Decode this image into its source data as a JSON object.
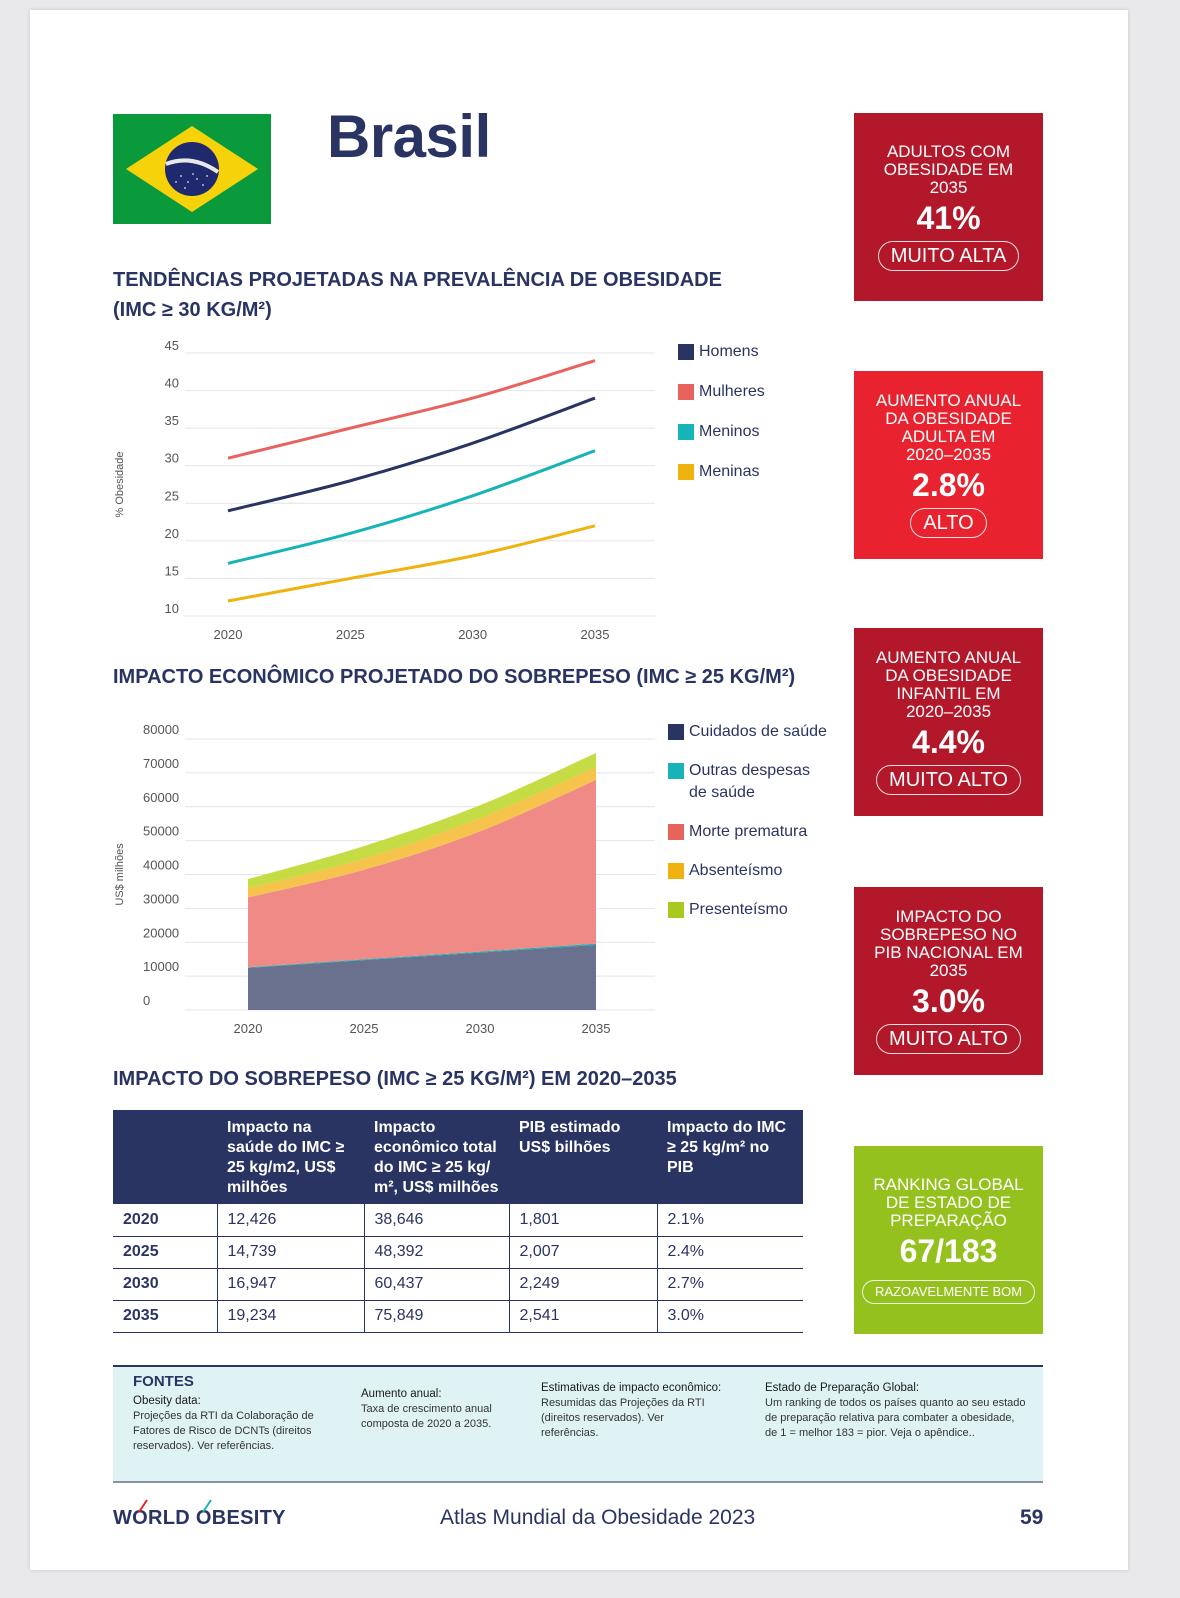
{
  "header": {
    "country": "Brasil",
    "flag_colors": {
      "green": "#0a9a3c",
      "yellow": "#f5d20a",
      "blue": "#1f2a6e"
    }
  },
  "stat_cards": [
    {
      "label": "ADULTOS COM OBESIDADE EM 2035",
      "label_lines": [
        "ADULTOS COM",
        "OBESIDADE EM",
        "2035"
      ],
      "value": "41%",
      "rating": "MUITO ALTA",
      "color": "#b3172a"
    },
    {
      "label": "AUMENTO ANUAL DA OBESIDADE ADULTA EM 2020–2035",
      "label_lines": [
        "AUMENTO ANUAL",
        "DA OBESIDADE",
        "ADULTA EM",
        "2020–2035"
      ],
      "value": "2.8%",
      "rating": "ALTO",
      "color": "#e8232f"
    },
    {
      "label": "AUMENTO ANUAL DA OBESIDADE INFANTIL EM 2020–2035",
      "label_lines": [
        "AUMENTO ANUAL",
        "DA OBESIDADE",
        "INFANTIL EM",
        "2020–2035"
      ],
      "value": "4.4%",
      "rating": "MUITO ALTO",
      "color": "#b3172a"
    },
    {
      "label": "IMPACTO DO SOBREPESO NO PIB NACIONAL EM 2035",
      "label_lines": [
        "IMPACTO DO",
        "SOBREPESO NO",
        "PIB NACIONAL EM",
        "2035"
      ],
      "value": "3.0%",
      "rating": "MUITO ALTO",
      "color": "#b3172a"
    },
    {
      "label": "RANKING GLOBAL DE ESTADO DE PREPARAÇÃO",
      "label_lines": [
        "RANKING GLOBAL",
        "DE ESTADO DE",
        "PREPARAÇÃO"
      ],
      "value": "67/183",
      "rating": "RAZOAVELMENTE BOM",
      "color": "#95c11f"
    }
  ],
  "chart_data": [
    {
      "type": "line",
      "title_lines": [
        "TENDÊNCIAS PROJETADAS NA PREVALÊNCIA DE OBESIDADE",
        "(IMC ≥ 30 KG/M²)"
      ],
      "xlabel": "",
      "ylabel": "% Obesidade",
      "x": [
        2020,
        2025,
        2030,
        2035
      ],
      "x_ticks": [
        "2020",
        "2025",
        "2030",
        "2035"
      ],
      "y_ticks": [
        "10",
        "15",
        "20",
        "25",
        "30",
        "35",
        "40",
        "45"
      ],
      "ylim": [
        10,
        45
      ],
      "grid": true,
      "legend_position": "right",
      "series": [
        {
          "name": "Homens",
          "color": "#2a3462",
          "values": [
            24,
            28,
            33,
            39
          ]
        },
        {
          "name": "Mulheres",
          "color": "#e8625e",
          "values": [
            31,
            35,
            39,
            44
          ]
        },
        {
          "name": "Meninos",
          "color": "#16b4b8",
          "values": [
            17,
            21,
            26,
            32
          ]
        },
        {
          "name": "Meninas",
          "color": "#f0b20f",
          "values": [
            12,
            15,
            18,
            22
          ]
        }
      ]
    },
    {
      "type": "area",
      "stacked": true,
      "title": "IMPACTO ECONÔMICO PROJETADO DO SOBREPESO (IMC ≥ 25 KG/M²)",
      "xlabel": "",
      "ylabel": "US$ milhões",
      "x": [
        2020,
        2025,
        2030,
        2035
      ],
      "x_ticks": [
        "2020",
        "2025",
        "2030",
        "2035"
      ],
      "y_ticks": [
        "0",
        "10000",
        "20000",
        "30000",
        "40000",
        "50000",
        "60000",
        "70000",
        "80000"
      ],
      "ylim": [
        0,
        80000
      ],
      "grid": true,
      "legend_position": "right",
      "series": [
        {
          "name": "Cuidados de saúde",
          "color": "#69718f",
          "legend_color": "#2a3462",
          "values": [
            12426,
            14739,
            16947,
            19234
          ]
        },
        {
          "name": "Outras despesas de saúde",
          "legend_lines": [
            "Outras despesas",
            "de saúde"
          ],
          "color": "#16b4b8",
          "legend_color": "#16b4b8",
          "values": [
            200,
            250,
            300,
            350
          ]
        },
        {
          "name": "Morte prematura",
          "color": "#ef8a87",
          "legend_color": "#e8625e",
          "values": [
            20600,
            26400,
            35500,
            48300
          ]
        },
        {
          "name": "Absenteísmo",
          "color": "#f6c34c",
          "legend_color": "#f0b20f",
          "values": [
            2700,
            3300,
            3900,
            3800
          ]
        },
        {
          "name": "Presenteísmo",
          "color": "#c5dc44",
          "legend_color": "#a8c91f",
          "values": [
            2720,
            3703,
            3790,
            4165
          ]
        }
      ]
    }
  ],
  "table": {
    "title": "IMPACTO DO SOBREPESO (IMC ≥ 25 KG/M²) EM 2020–2035",
    "headers": [
      "",
      "Impacto na saúde do IMC ≥ 25 kg/m2, US$ milhões",
      "Impacto econômico total do IMC ≥ 25 kg/ m², US$ milhões",
      "PIB estimado US$ bilhões",
      "Impacto do IMC ≥ 25 kg/m² no PIB"
    ],
    "rows": [
      [
        "2020",
        "12,426",
        "38,646",
        "1,801",
        "2.1%"
      ],
      [
        "2025",
        "14,739",
        "48,392",
        "2,007",
        "2.4%"
      ],
      [
        "2030",
        "16,947",
        "60,437",
        "2,249",
        "2.7%"
      ],
      [
        "2035",
        "19,234",
        "75,849",
        "2,541",
        "3.0%"
      ]
    ]
  },
  "sources": {
    "heading": "FONTES",
    "items": [
      {
        "title": "Obesity data:",
        "text": "Projeções da RTI da Colaboração de Fatores de Risco de DCNTs (direitos reservados). Ver referências."
      },
      {
        "title": "Aumento anual:",
        "text": "Taxa de crescimento anual composta de 2020 a 2035."
      },
      {
        "title": "Estimativas de impacto econômico:",
        "text": "Resumidas das Projeções da RTI (direitos reservados). Ver referências."
      },
      {
        "title": "Estado de Preparação Global:",
        "text": "Um ranking de todos os países quanto ao seu estado de preparação relativa para combater a obesidade, de 1 = melhor 183 = pior. Veja o apêndice.."
      }
    ]
  },
  "footer": {
    "logo": "WORLD OBESITY",
    "publication": "Atlas Mundial da Obesidade 2023",
    "page_number": "59"
  }
}
